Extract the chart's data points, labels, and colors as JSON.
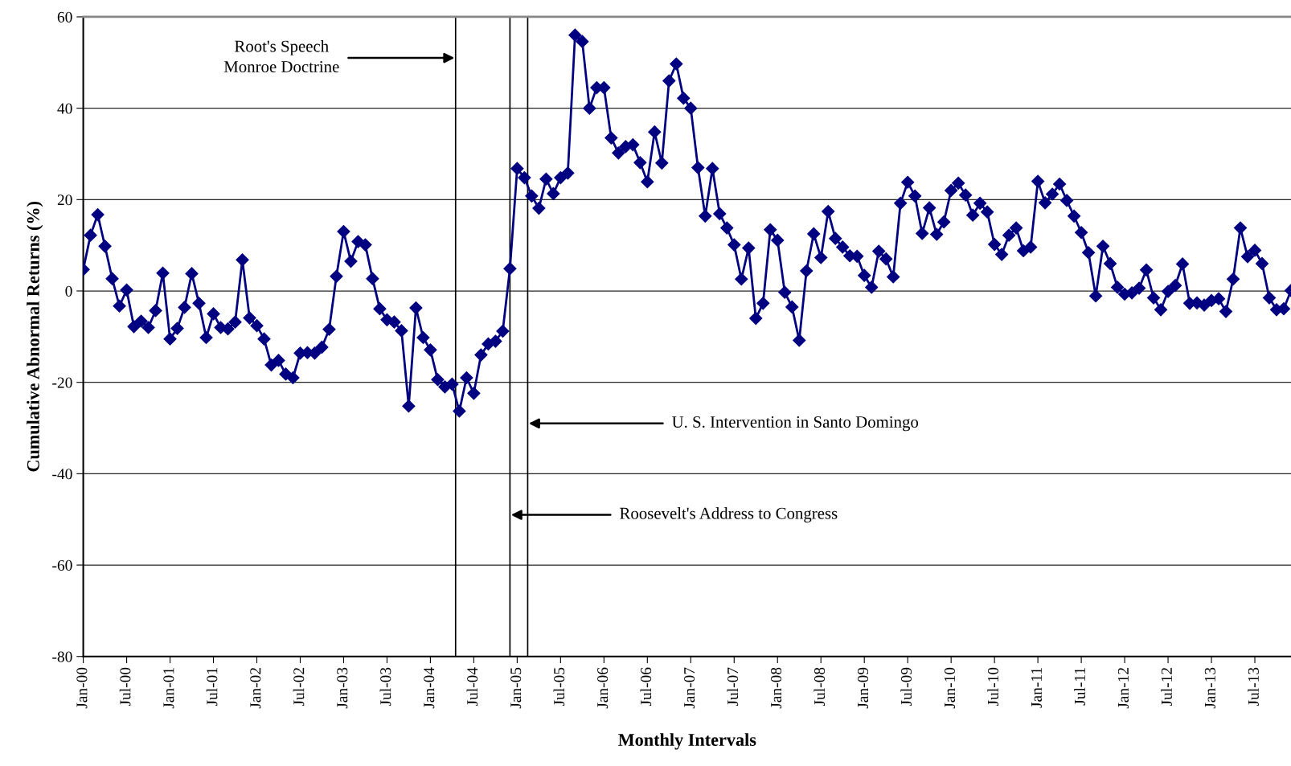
{
  "chart_data": {
    "type": "line",
    "xlabel": "Monthly Intervals",
    "ylabel": "Cumulative Abnormal Returns (%)",
    "x": [
      "1900-01",
      "1900-02",
      "1900-03",
      "1900-04",
      "1900-05",
      "1900-06",
      "1900-07",
      "1900-08",
      "1900-09",
      "1900-10",
      "1900-11",
      "1900-12",
      "1901-01",
      "1901-02",
      "1901-03",
      "1901-04",
      "1901-05",
      "1901-06",
      "1901-07",
      "1901-08",
      "1901-09",
      "1901-10",
      "1901-11",
      "1901-12",
      "1902-01",
      "1902-02",
      "1902-03",
      "1902-04",
      "1902-05",
      "1902-06",
      "1902-07",
      "1902-08",
      "1902-09",
      "1902-10",
      "1902-11",
      "1902-12",
      "1903-01",
      "1903-02",
      "1903-03",
      "1903-04",
      "1903-05",
      "1903-06",
      "1903-07",
      "1903-08",
      "1903-09",
      "1903-10",
      "1903-11",
      "1903-12",
      "1904-01",
      "1904-02",
      "1904-03",
      "1904-04",
      "1904-05",
      "1904-06",
      "1904-07",
      "1904-08",
      "1904-09",
      "1904-10",
      "1904-11",
      "1904-12",
      "1905-01",
      "1905-02",
      "1905-03",
      "1905-04",
      "1905-05",
      "1905-06",
      "1905-07",
      "1905-08",
      "1905-09",
      "1905-10",
      "1905-11",
      "1905-12",
      "1906-01",
      "1906-02",
      "1906-03",
      "1906-04",
      "1906-05",
      "1906-06",
      "1906-07",
      "1906-08",
      "1906-09",
      "1906-10",
      "1906-11",
      "1906-12",
      "1907-01",
      "1907-02",
      "1907-03",
      "1907-04",
      "1907-05",
      "1907-06",
      "1907-07",
      "1907-08",
      "1907-09",
      "1907-10",
      "1907-11",
      "1907-12",
      "1908-01",
      "1908-02",
      "1908-03",
      "1908-04",
      "1908-05",
      "1908-06",
      "1908-07",
      "1908-08",
      "1908-09",
      "1908-10",
      "1908-11",
      "1908-12",
      "1909-01",
      "1909-02",
      "1909-03",
      "1909-04",
      "1909-05",
      "1909-06",
      "1909-07",
      "1909-08",
      "1909-09",
      "1909-10",
      "1909-11",
      "1909-12",
      "1910-01",
      "1910-02",
      "1910-03",
      "1910-04",
      "1910-05",
      "1910-06",
      "1910-07",
      "1910-08",
      "1910-09",
      "1910-10",
      "1910-11",
      "1910-12",
      "1911-01",
      "1911-02",
      "1911-03",
      "1911-04",
      "1911-05",
      "1911-06",
      "1911-07",
      "1911-08",
      "1911-09",
      "1911-10",
      "1911-11",
      "1911-12",
      "1912-01",
      "1912-02",
      "1912-03",
      "1912-04",
      "1912-05",
      "1912-06",
      "1912-07",
      "1912-08",
      "1912-09",
      "1912-10",
      "1912-11",
      "1912-12",
      "1913-01",
      "1913-02",
      "1913-03",
      "1913-04",
      "1913-05",
      "1913-06",
      "1913-07",
      "1913-08",
      "1913-09",
      "1913-10",
      "1913-11",
      "1913-12"
    ],
    "series": [
      {
        "color": "#000080",
        "values": [
          4.7,
          12.2,
          16.7,
          9.8,
          2.7,
          -3.3,
          0.2,
          -7.8,
          -6.6,
          -8.0,
          -4.3,
          3.9,
          -10.5,
          -8.2,
          -3.6,
          3.8,
          -2.7,
          -10.2,
          -5.0,
          -8.0,
          -8.3,
          -6.8,
          6.8,
          -5.9,
          -7.6,
          -10.5,
          -16.2,
          -15.2,
          -18.2,
          -19.0,
          -13.6,
          -13.5,
          -13.6,
          -12.3,
          -8.4,
          3.2,
          13.0,
          6.5,
          10.8,
          10.1,
          2.7,
          -3.9,
          -6.3,
          -6.8,
          -8.7,
          -25.2,
          -3.7,
          -10.2,
          -12.9,
          -19.4,
          -21.0,
          -20.4,
          -26.3,
          -19.0,
          -22.4,
          -14.0,
          -11.6,
          -11.0,
          -8.8,
          4.9,
          26.8,
          24.8,
          20.8,
          18.1,
          24.5,
          21.3,
          24.8,
          25.8,
          56.0,
          54.6,
          40.0,
          44.5,
          44.5,
          33.5,
          30.2,
          31.6,
          32.0,
          28.1,
          23.9,
          34.8,
          28.0,
          46.0,
          49.7,
          42.2,
          40.0,
          27.0,
          16.4,
          26.8,
          16.9,
          13.8,
          10.1,
          2.6,
          9.4,
          -6.0,
          -2.7,
          13.4,
          11.1,
          -0.3,
          -3.5,
          -10.8,
          4.4,
          12.5,
          7.3,
          17.4,
          11.5,
          9.6,
          7.7,
          7.6,
          3.4,
          0.8,
          8.7,
          7.0,
          3.1,
          19.2,
          23.8,
          20.8,
          12.6,
          18.2,
          12.4,
          15.1,
          22.0,
          23.6,
          21.0,
          16.6,
          19.2,
          17.3,
          10.2,
          8.0,
          12.2,
          13.8,
          8.8,
          9.6,
          24.0,
          19.3,
          21.2,
          23.4,
          19.8,
          16.4,
          12.8,
          8.4,
          -1.1,
          9.8,
          6.0,
          0.8,
          -0.7,
          -0.4,
          0.6,
          4.6,
          -1.5,
          -4.1,
          -0.1,
          1.2,
          5.9,
          -2.7,
          -2.6,
          -3.1,
          -2.1,
          -1.7,
          -4.5,
          2.6,
          13.8,
          7.5,
          8.9,
          6.0,
          -1.5,
          -4.1,
          -3.9,
          0.1
        ]
      }
    ],
    "xlim": [
      "1900-01",
      "1913-12"
    ],
    "xticks": [
      {
        "value": "1900-01",
        "label": "Jan-00"
      },
      {
        "value": "1900-07",
        "label": "Jul-00"
      },
      {
        "value": "1901-01",
        "label": "Jan-01"
      },
      {
        "value": "1901-07",
        "label": "Jul-01"
      },
      {
        "value": "1902-01",
        "label": "Jan-02"
      },
      {
        "value": "1902-07",
        "label": "Jul-02"
      },
      {
        "value": "1903-01",
        "label": "Jan-03"
      },
      {
        "value": "1903-07",
        "label": "Jul-03"
      },
      {
        "value": "1904-01",
        "label": "Jan-04"
      },
      {
        "value": "1904-07",
        "label": "Jul-04"
      },
      {
        "value": "1905-01",
        "label": "Jan-05"
      },
      {
        "value": "1905-07",
        "label": "Jul-05"
      },
      {
        "value": "1906-01",
        "label": "Jan-06"
      },
      {
        "value": "1906-07",
        "label": "Jul-06"
      },
      {
        "value": "1907-01",
        "label": "Jan-07"
      },
      {
        "value": "1907-07",
        "label": "Jul-07"
      },
      {
        "value": "1908-01",
        "label": "Jan-08"
      },
      {
        "value": "1908-07",
        "label": "Jul-08"
      },
      {
        "value": "1909-01",
        "label": "Jan-09"
      },
      {
        "value": "1909-07",
        "label": "Jul-09"
      },
      {
        "value": "1910-01",
        "label": "Jan-10"
      },
      {
        "value": "1910-07",
        "label": "Jul-10"
      },
      {
        "value": "1911-01",
        "label": "Jan-11"
      },
      {
        "value": "1911-07",
        "label": "Jul-11"
      },
      {
        "value": "1912-01",
        "label": "Jan-12"
      },
      {
        "value": "1912-07",
        "label": "Jul-12"
      },
      {
        "value": "1913-01",
        "label": "Jan-13"
      },
      {
        "value": "1913-07",
        "label": "Jul-13"
      }
    ],
    "ylim": [
      -80,
      60
    ],
    "yticks": [
      -80,
      -60,
      -40,
      -20,
      0,
      20,
      40,
      60
    ],
    "grid": "y",
    "marker": "diamond",
    "line_style": "solid",
    "ref_lines": [
      {
        "axis": "x",
        "value": "1904-04-16",
        "color": "#000000"
      },
      {
        "axis": "x",
        "value": "1904-12",
        "color": "#000000"
      },
      {
        "axis": "x",
        "value": "1905-02-15",
        "color": "#000000"
      }
    ],
    "annotations": [
      {
        "text": "Root's Speech\nMonroe Doctrine",
        "x": "1904-04-16",
        "y": 51
      },
      {
        "text": "Roosevelt's Address to Congress",
        "x": "1904-12",
        "y": -49
      },
      {
        "text": "U. S. Intervention in Santo Domingo",
        "x": "1905-02-15",
        "y": -29
      }
    ]
  }
}
